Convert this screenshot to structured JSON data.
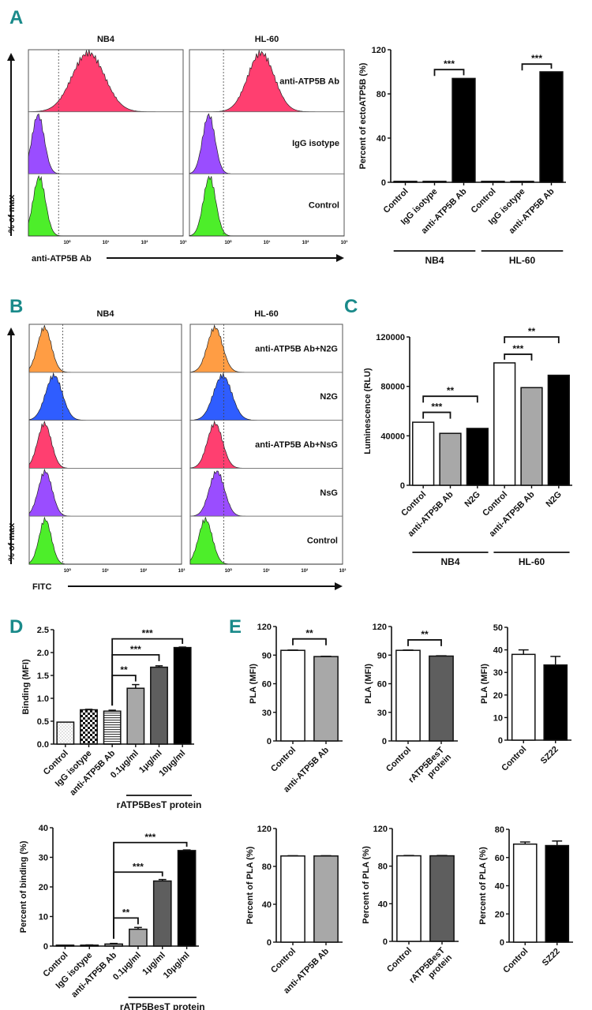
{
  "panel_letters": {
    "A": "A",
    "B": "B",
    "C": "C",
    "D": "D",
    "E": "E"
  },
  "colors": {
    "panel_letter": "#1a8a8a",
    "hist_pink": "#ff3f70",
    "hist_purple": "#9a4dff",
    "hist_green": "#4dee2a",
    "hist_orange": "#ff9d44",
    "hist_blue": "#2f5dff",
    "bar_white": "#ffffff",
    "bar_lightgray": "#a8a8a8",
    "bar_darkgray": "#5e5e5e",
    "bar_black": "#000000"
  },
  "chart_data": [
    {
      "id": "A-hist",
      "type": "histogram",
      "title": "",
      "columns": [
        "NB4",
        "HL-60"
      ],
      "rows": [
        "anti-ATP5B Ab",
        "IgG isotype",
        "Control"
      ],
      "row_colors": [
        "hist_pink",
        "hist_purple",
        "hist_green"
      ],
      "peaks_log10": {
        "NB4": [
          0.55,
          -0.75,
          -0.72
        ],
        "HL-60": [
          0.85,
          -0.5,
          -0.48
        ]
      },
      "widths_log10": {
        "NB4": [
          0.42,
          0.16,
          0.16
        ],
        "HL-60": [
          0.34,
          0.16,
          0.16
        ]
      },
      "gate_log10": {
        "NB4": -0.22,
        "HL-60": -0.12
      },
      "xtick_labels": [
        "10⁰",
        "10¹",
        "10²",
        "10³"
      ],
      "xtick_values": [
        0,
        1,
        2,
        3
      ],
      "xlim_log10": [
        -1.0,
        3.0
      ],
      "xlabel": "anti-ATP5B Ab",
      "ylabel": "% of max"
    },
    {
      "id": "A-bar",
      "type": "bar",
      "categories": [
        "Control",
        "IgG isotype",
        "anti-ATP5B Ab",
        "Control",
        "IgG isotype",
        "anti-ATP5B Ab"
      ],
      "groups": [
        {
          "label": "NB4",
          "from": 0,
          "to": 2
        },
        {
          "label": "HL-60",
          "from": 3,
          "to": 5
        }
      ],
      "values": [
        0.3,
        0.3,
        94,
        0.3,
        0.3,
        100
      ],
      "fills": [
        "bar_black",
        "bar_black",
        "bar_black",
        "bar_black",
        "bar_black",
        "bar_black"
      ],
      "ylabel": "Percent of ectoATP5B (%)",
      "ylim": [
        0,
        120
      ],
      "yticks": [
        0,
        40,
        80,
        120
      ],
      "significance": [
        {
          "from": 1,
          "to": 2,
          "label": "***",
          "y": 102
        },
        {
          "from": 4,
          "to": 5,
          "label": "***",
          "y": 107
        }
      ]
    },
    {
      "id": "B-hist",
      "type": "histogram",
      "columns": [
        "NB4",
        "HL-60"
      ],
      "rows": [
        "anti-ATP5B Ab+N2G",
        "N2G",
        "anti-ATP5B Ab+NsG",
        "NsG",
        "Control"
      ],
      "row_colors": [
        "hist_orange",
        "hist_blue",
        "hist_pink",
        "hist_purple",
        "hist_green"
      ],
      "peaks_log10": {
        "NB4": [
          -0.6,
          -0.35,
          -0.6,
          -0.58,
          -0.58
        ],
        "HL-60": [
          -0.35,
          -0.15,
          -0.35,
          -0.3,
          -0.6
        ]
      },
      "widths_log10": {
        "NB4": [
          0.18,
          0.22,
          0.18,
          0.18,
          0.16
        ],
        "HL-60": [
          0.2,
          0.24,
          0.2,
          0.2,
          0.18
        ]
      },
      "gate_log10": {
        "NB4": -0.12,
        "HL-60": -0.12
      },
      "xtick_labels": [
        "10⁰",
        "10¹",
        "10²",
        "10³"
      ],
      "xtick_values": [
        0,
        1,
        2,
        3
      ],
      "xlim_log10": [
        -1.0,
        3.0
      ],
      "xlabel": "FITC",
      "ylabel": "% of max"
    },
    {
      "id": "C-bar",
      "type": "bar",
      "categories": [
        "Control",
        "anti-ATP5B Ab",
        "N2G",
        "Control",
        "anti-ATP5B Ab",
        "N2G"
      ],
      "groups": [
        {
          "label": "NB4",
          "from": 0,
          "to": 2
        },
        {
          "label": "HL-60",
          "from": 3,
          "to": 5
        }
      ],
      "values": [
        51000,
        42000,
        46000,
        99000,
        79000,
        89000
      ],
      "fills": [
        "bar_white",
        "bar_lightgray",
        "bar_black",
        "bar_white",
        "bar_lightgray",
        "bar_black"
      ],
      "ylabel": "Luminescence (RLU)",
      "ylim": [
        0,
        120000
      ],
      "yticks": [
        0,
        40000,
        80000,
        120000
      ],
      "significance": [
        {
          "from": 0,
          "to": 1,
          "label": "***",
          "y": 59000
        },
        {
          "from": 0,
          "to": 2,
          "label": "**",
          "y": 72000
        },
        {
          "from": 3,
          "to": 4,
          "label": "***",
          "y": 106000
        },
        {
          "from": 3,
          "to": 5,
          "label": "**",
          "y": 120000
        }
      ]
    },
    {
      "id": "D-top",
      "type": "bar",
      "categories": [
        "Control",
        "IgG isotype",
        "anti-ATP5B Ab",
        "0.1μg/ml",
        "1μg/ml",
        "10μg/ml"
      ],
      "groups": [
        {
          "label": "rATP5BesT protein",
          "from": 3,
          "to": 5
        }
      ],
      "values": [
        0.48,
        0.75,
        0.72,
        1.22,
        1.68,
        2.11
      ],
      "errors": [
        0,
        0.01,
        0.02,
        0.08,
        0.03,
        0.01
      ],
      "fills": [
        "pat_dots",
        "pat_checker",
        "pat_stripes",
        "bar_lightgray",
        "bar_darkgray",
        "bar_black"
      ],
      "ylabel": "Binding (MFI)",
      "ylim": [
        0,
        2.5
      ],
      "yticks": [
        0.0,
        0.5,
        1.0,
        1.5,
        2.0,
        2.5
      ],
      "ytick_labels": [
        "0.0",
        "0.5",
        "1.0",
        "1.5",
        "2.0",
        "2.5"
      ],
      "significance": [
        {
          "from": 2,
          "to": 3,
          "label": "**",
          "y": 1.5
        },
        {
          "from": 2,
          "to": 4,
          "label": "***",
          "y": 1.95
        },
        {
          "from": 2,
          "to": 5,
          "label": "***",
          "y": 2.3
        }
      ],
      "sig_shared_stem": true
    },
    {
      "id": "D-bottom",
      "type": "bar",
      "categories": [
        "Control",
        "IgG isotype",
        "anti-ATP5B Ab",
        "0.1μg/ml",
        "1μg/ml",
        "10μg/ml"
      ],
      "groups": [
        {
          "label": "rATP5BesT protein",
          "from": 3,
          "to": 5
        }
      ],
      "values": [
        0,
        0.3,
        0.7,
        5.7,
        22,
        32.3
      ],
      "errors": [
        0,
        0.1,
        0.2,
        0.6,
        0.5,
        0.2
      ],
      "fills": [
        "bar_white",
        "bar_lightgray",
        "bar_lightgray",
        "bar_lightgray",
        "bar_darkgray",
        "bar_black"
      ],
      "ylabel": "Percent of binding (%)",
      "ylim": [
        0,
        40
      ],
      "yticks": [
        0,
        10,
        20,
        30,
        40
      ],
      "significance": [
        {
          "from": 2,
          "to": 3,
          "label": "**",
          "y": 9.5
        },
        {
          "from": 2,
          "to": 4,
          "label": "***",
          "y": 25
        },
        {
          "from": 2,
          "to": 5,
          "label": "***",
          "y": 35
        }
      ],
      "sig_shared_stem": true
    },
    {
      "id": "E-1",
      "type": "bar",
      "categories": [
        "Control",
        "anti-ATP5B Ab"
      ],
      "values": [
        95,
        88.5
      ],
      "errors": [
        0.3,
        0.3
      ],
      "fills": [
        "bar_white",
        "bar_lightgray"
      ],
      "ylabel": "PLA (MFI)",
      "ylim": [
        0,
        120
      ],
      "yticks": [
        0,
        30,
        60,
        90,
        120
      ],
      "significance": [
        {
          "from": 0,
          "to": 1,
          "label": "**",
          "y": 107
        }
      ]
    },
    {
      "id": "E-2",
      "type": "bar",
      "categories": [
        "Control",
        "rATP5BesT protein"
      ],
      "values": [
        95,
        89
      ],
      "errors": [
        0.3,
        0.3
      ],
      "fills": [
        "bar_white",
        "bar_darkgray"
      ],
      "ylabel": "PLA (MFI)",
      "ylim": [
        0,
        120
      ],
      "yticks": [
        0,
        30,
        60,
        90,
        120
      ],
      "significance": [
        {
          "from": 0,
          "to": 1,
          "label": "**",
          "y": 106
        }
      ]
    },
    {
      "id": "E-3",
      "type": "bar",
      "categories": [
        "Control",
        "SZ22"
      ],
      "values": [
        38,
        33.3
      ],
      "errors": [
        2,
        3.8
      ],
      "fills": [
        "bar_white",
        "bar_black"
      ],
      "ylabel": "PLA (MFI)",
      "ylim": [
        0,
        50
      ],
      "yticks": [
        0,
        10,
        20,
        30,
        40,
        50
      ],
      "significance": []
    },
    {
      "id": "E-4",
      "type": "bar",
      "categories": [
        "Control",
        "anti-ATP5B Ab"
      ],
      "values": [
        91,
        91
      ],
      "errors": [
        0.3,
        0.3
      ],
      "fills": [
        "bar_white",
        "bar_lightgray"
      ],
      "ylabel": "Percent of PLA (%)",
      "ylim": [
        0,
        120
      ],
      "yticks": [
        0,
        40,
        80,
        120
      ],
      "significance": []
    },
    {
      "id": "E-5",
      "type": "bar",
      "categories": [
        "Control",
        "rATP5BesT protein"
      ],
      "values": [
        91,
        91
      ],
      "errors": [
        0.3,
        0.3
      ],
      "fills": [
        "bar_white",
        "bar_darkgray"
      ],
      "ylabel": "Percent of PLA (%)",
      "ylim": [
        0,
        120
      ],
      "yticks": [
        0,
        40,
        80,
        120
      ],
      "significance": []
    },
    {
      "id": "E-6",
      "type": "bar",
      "categories": [
        "Control",
        "SZ22"
      ],
      "values": [
        69.5,
        68.5
      ],
      "errors": [
        1.5,
        3.2
      ],
      "fills": [
        "bar_white",
        "bar_black"
      ],
      "ylabel": "Percent of PLA (%)",
      "ylim": [
        0,
        80
      ],
      "yticks": [
        0,
        20,
        40,
        60,
        80
      ],
      "significance": []
    }
  ]
}
